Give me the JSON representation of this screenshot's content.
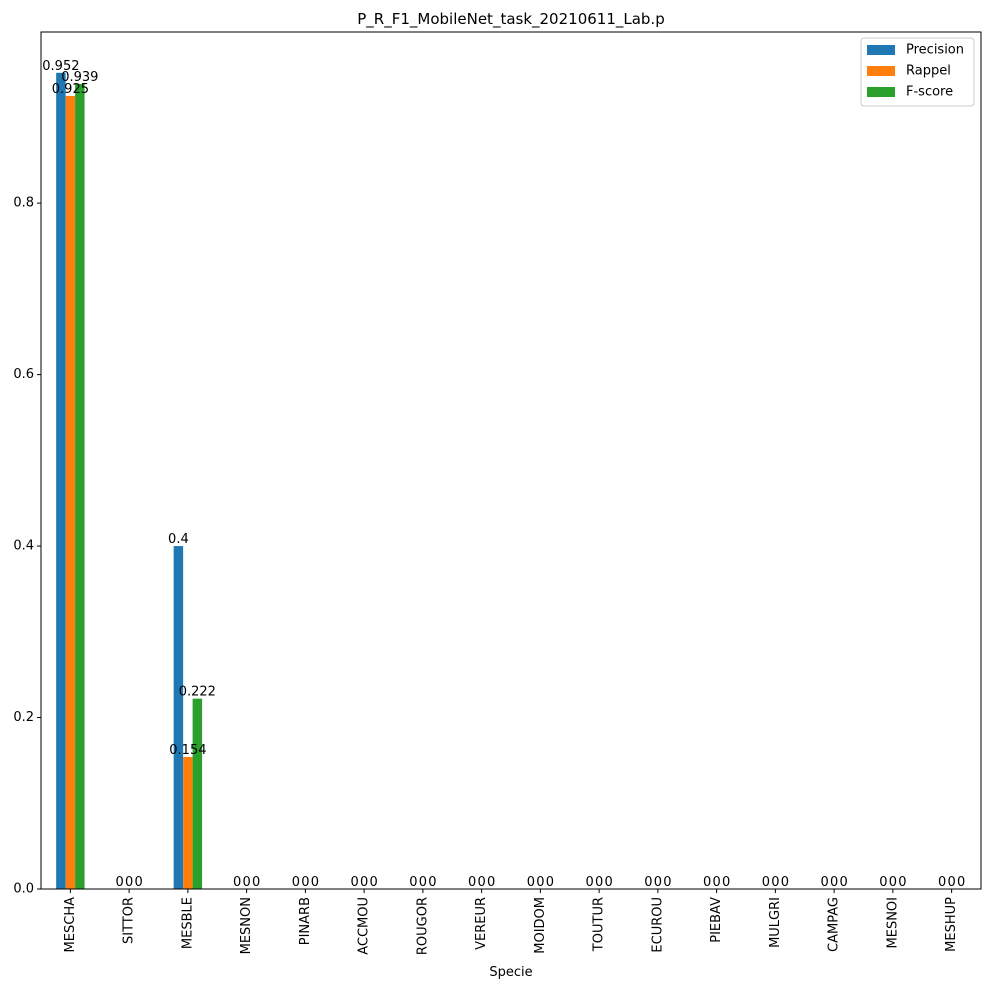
{
  "chart_data": {
    "type": "bar",
    "title": "P_R_F1_MobileNet_task_20210611_Lab.p",
    "xlabel": "Specie",
    "ylabel": "",
    "ylim": [
      0,
      0.9996
    ],
    "yticks": [
      "0.0",
      "0.2",
      "0.4",
      "0.6",
      "0.8"
    ],
    "legend_position": "top-right",
    "grid": false,
    "categories": [
      "MESCHA",
      "SITTOR",
      "MESBLE",
      "MESNON",
      "PINARB",
      "ACCMOU",
      "ROUGOR",
      "VEREUR",
      "MOIDOM",
      "TOUTUR",
      "ECUROU",
      "PIEBAV",
      "MULGRI",
      "CAMPAG",
      "MESNOI",
      "MESHUP"
    ],
    "series": [
      {
        "name": "Precision",
        "color": "#1f77b4",
        "values": [
          0.952,
          0,
          0.4,
          0,
          0,
          0,
          0,
          0,
          0,
          0,
          0,
          0,
          0,
          0,
          0,
          0
        ],
        "labels": [
          "0.952",
          "0",
          "0.4",
          "0",
          "0",
          "0",
          "0",
          "0",
          "0",
          "0",
          "0",
          "0",
          "0",
          "0",
          "0",
          "0"
        ]
      },
      {
        "name": "Rappel",
        "color": "#ff7f0e",
        "values": [
          0.925,
          0,
          0.154,
          0,
          0,
          0,
          0,
          0,
          0,
          0,
          0,
          0,
          0,
          0,
          0,
          0
        ],
        "labels": [
          "0.925",
          "0",
          "0.154",
          "0",
          "0",
          "0",
          "0",
          "0",
          "0",
          "0",
          "0",
          "0",
          "0",
          "0",
          "0",
          "0"
        ]
      },
      {
        "name": "F-score",
        "color": "#2ca02c",
        "values": [
          0.939,
          0,
          0.222,
          0,
          0,
          0,
          0,
          0,
          0,
          0,
          0,
          0,
          0,
          0,
          0,
          0
        ],
        "labels": [
          "0.939",
          "0",
          "0.222",
          "0",
          "0",
          "0",
          "0",
          "0",
          "0",
          "0",
          "0",
          "0",
          "0",
          "0",
          "0",
          "0"
        ]
      }
    ]
  }
}
